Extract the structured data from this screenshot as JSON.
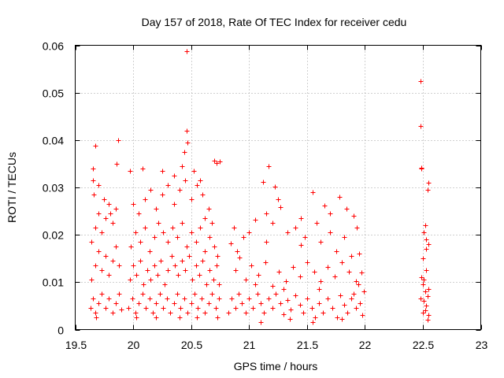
{
  "chart_data": {
    "type": "scatter",
    "title": "Day 157 of 2018, Rate Of TEC Index for receiver cedu",
    "xlabel": "GPS time / hours",
    "ylabel": "ROTI / TECUs",
    "xlim": [
      19.5,
      23
    ],
    "ylim": [
      0,
      0.06
    ],
    "x_ticks": [
      19.5,
      20,
      20.5,
      21,
      21.5,
      22,
      22.5,
      23
    ],
    "x_tick_labels": [
      "19.5",
      "20",
      "20.5",
      "21",
      "21.5",
      "22",
      "22.5",
      "23"
    ],
    "y_ticks": [
      0,
      0.01,
      0.02,
      0.03,
      0.04,
      0.05,
      0.06
    ],
    "y_tick_labels": [
      "0",
      "0.01",
      "0.02",
      "0.03",
      "0.04",
      "0.05",
      "0.06"
    ],
    "grid": true,
    "marker": "+",
    "color": "#ff0000",
    "series": [
      {
        "name": "ROTI",
        "points": [
          [
            20.46,
            0.0587
          ],
          [
            22.48,
            0.0524
          ],
          [
            22.48,
            0.043
          ],
          [
            20.46,
            0.042
          ],
          [
            19.87,
            0.04
          ],
          [
            20.47,
            0.0395
          ],
          [
            19.67,
            0.0388
          ],
          [
            20.44,
            0.0375
          ],
          [
            22.49,
            0.0342
          ],
          [
            22.49,
            0.034
          ],
          [
            19.65,
            0.034
          ],
          [
            19.86,
            0.035
          ],
          [
            21.17,
            0.0345
          ],
          [
            20.08,
            0.034
          ],
          [
            19.97,
            0.0335
          ],
          [
            22.55,
            0.031
          ],
          [
            22.54,
            0.0295
          ],
          [
            20.7,
            0.0356
          ],
          [
            20.72,
            0.0352
          ],
          [
            20.75,
            0.0355
          ],
          [
            22.52,
            0.022
          ],
          [
            22.51,
            0.0205
          ],
          [
            22.53,
            0.019
          ],
          [
            22.55,
            0.018
          ],
          [
            22.53,
            0.017
          ],
          [
            22.5,
            0.015
          ],
          [
            22.49,
            0.011
          ],
          [
            22.5,
            0.0095
          ],
          [
            22.52,
            0.008
          ],
          [
            22.54,
            0.007
          ],
          [
            22.51,
            0.006
          ],
          [
            22.53,
            0.005
          ],
          [
            22.52,
            0.004
          ],
          [
            22.55,
            0.003
          ],
          [
            22.54,
            0.002
          ],
          [
            22.5,
            0.0035
          ],
          [
            22.48,
            0.0065
          ],
          [
            22.55,
            0.0085
          ],
          [
            22.51,
            0.0105
          ],
          [
            22.53,
            0.0125
          ],
          [
            21.0,
            0.0205
          ],
          [
            21.05,
            0.0232
          ],
          [
            21.12,
            0.0312
          ],
          [
            21.22,
            0.0302
          ],
          [
            21.27,
            0.0258
          ],
          [
            21.33,
            0.0205
          ],
          [
            21.45,
            0.0178
          ],
          [
            21.55,
            0.029
          ],
          [
            21.65,
            0.0262
          ],
          [
            21.78,
            0.028
          ],
          [
            21.84,
            0.0255
          ],
          [
            21.9,
            0.024
          ],
          [
            21.93,
            0.0215
          ],
          [
            21.95,
            0.016
          ],
          [
            21.97,
            0.012
          ],
          [
            21.99,
            0.008
          ],
          [
            21.98,
            0.003
          ],
          [
            21.96,
            0.0055
          ],
          [
            21.94,
            0.0095
          ],
          [
            21.92,
            0.0045
          ],
          [
            21.88,
            0.0065
          ],
          [
            21.85,
            0.0035
          ],
          [
            21.82,
            0.0052
          ],
          [
            21.79,
            0.0072
          ],
          [
            21.76,
            0.0025
          ],
          [
            21.72,
            0.0045
          ],
          [
            21.68,
            0.0065
          ],
          [
            21.64,
            0.0035
          ],
          [
            21.6,
            0.0055
          ],
          [
            21.57,
            0.0025
          ],
          [
            21.54,
            0.0045
          ],
          [
            21.5,
            0.0065
          ],
          [
            21.47,
            0.0035
          ],
          [
            21.44,
            0.0052
          ],
          [
            21.4,
            0.0072
          ],
          [
            21.36,
            0.0042
          ],
          [
            21.33,
            0.0062
          ],
          [
            21.3,
            0.0032
          ],
          [
            21.27,
            0.0055
          ],
          [
            21.23,
            0.0075
          ],
          [
            21.2,
            0.0045
          ],
          [
            21.17,
            0.0065
          ],
          [
            21.13,
            0.0035
          ],
          [
            21.1,
            0.0055
          ],
          [
            21.07,
            0.0075
          ],
          [
            21.03,
            0.0045
          ],
          [
            21.0,
            0.0065
          ],
          [
            20.97,
            0.0035
          ],
          [
            20.94,
            0.0055
          ],
          [
            20.91,
            0.0075
          ],
          [
            20.88,
            0.0045
          ],
          [
            20.85,
            0.0065
          ],
          [
            20.82,
            0.0035
          ],
          [
            20.88,
            0.0125
          ],
          [
            20.92,
            0.0152
          ],
          [
            20.97,
            0.0105
          ],
          [
            21.02,
            0.0135
          ],
          [
            21.08,
            0.0115
          ],
          [
            21.14,
            0.0142
          ],
          [
            21.2,
            0.0092
          ],
          [
            21.26,
            0.0122
          ],
          [
            21.32,
            0.0102
          ],
          [
            21.38,
            0.0132
          ],
          [
            21.44,
            0.0112
          ],
          [
            21.5,
            0.0142
          ],
          [
            21.56,
            0.0122
          ],
          [
            21.62,
            0.0102
          ],
          [
            21.68,
            0.0132
          ],
          [
            21.74,
            0.0112
          ],
          [
            21.8,
            0.0142
          ],
          [
            21.86,
            0.0122
          ],
          [
            21.92,
            0.0102
          ],
          [
            20.84,
            0.0182
          ],
          [
            20.87,
            0.0215
          ],
          [
            20.9,
            0.0165
          ],
          [
            20.95,
            0.0195
          ],
          [
            21.15,
            0.0245
          ],
          [
            21.2,
            0.0225
          ],
          [
            21.25,
            0.0275
          ],
          [
            21.4,
            0.0215
          ],
          [
            21.48,
            0.0195
          ],
          [
            21.58,
            0.0225
          ],
          [
            21.62,
            0.0185
          ],
          [
            21.7,
            0.0205
          ],
          [
            21.75,
            0.0165
          ],
          [
            21.82,
            0.0195
          ],
          [
            21.88,
            0.0155
          ],
          [
            21.15,
            0.0185
          ],
          [
            19.63,
            0.0045
          ],
          [
            19.65,
            0.0065
          ],
          [
            19.67,
            0.0035
          ],
          [
            19.7,
            0.0055
          ],
          [
            19.73,
            0.0075
          ],
          [
            19.76,
            0.0045
          ],
          [
            19.79,
            0.0065
          ],
          [
            19.82,
            0.0035
          ],
          [
            19.85,
            0.0055
          ],
          [
            19.88,
            0.0075
          ],
          [
            19.64,
            0.0105
          ],
          [
            19.67,
            0.0135
          ],
          [
            19.7,
            0.0165
          ],
          [
            19.73,
            0.0125
          ],
          [
            19.76,
            0.0155
          ],
          [
            19.79,
            0.0115
          ],
          [
            19.82,
            0.0145
          ],
          [
            19.85,
            0.0175
          ],
          [
            19.88,
            0.0135
          ],
          [
            19.64,
            0.0185
          ],
          [
            19.67,
            0.0215
          ],
          [
            19.7,
            0.0245
          ],
          [
            19.73,
            0.0205
          ],
          [
            19.76,
            0.0235
          ],
          [
            19.79,
            0.0265
          ],
          [
            19.82,
            0.0225
          ],
          [
            19.85,
            0.0255
          ],
          [
            19.66,
            0.0285
          ],
          [
            19.7,
            0.0305
          ],
          [
            19.75,
            0.0275
          ],
          [
            19.8,
            0.0245
          ],
          [
            19.65,
            0.0315
          ],
          [
            19.96,
            0.0045
          ],
          [
            19.99,
            0.0065
          ],
          [
            20.02,
            0.0035
          ],
          [
            20.05,
            0.0055
          ],
          [
            20.08,
            0.0075
          ],
          [
            20.11,
            0.0045
          ],
          [
            20.14,
            0.0065
          ],
          [
            20.17,
            0.0035
          ],
          [
            20.2,
            0.0055
          ],
          [
            20.23,
            0.0075
          ],
          [
            20.26,
            0.0045
          ],
          [
            20.29,
            0.0065
          ],
          [
            20.32,
            0.0035
          ],
          [
            20.35,
            0.0055
          ],
          [
            20.38,
            0.0075
          ],
          [
            20.41,
            0.0045
          ],
          [
            20.44,
            0.0065
          ],
          [
            20.47,
            0.0035
          ],
          [
            20.5,
            0.0055
          ],
          [
            20.53,
            0.0075
          ],
          [
            20.56,
            0.0045
          ],
          [
            20.59,
            0.0065
          ],
          [
            20.62,
            0.0035
          ],
          [
            20.65,
            0.0055
          ],
          [
            20.68,
            0.0075
          ],
          [
            20.71,
            0.0045
          ],
          [
            20.74,
            0.0065
          ],
          [
            19.97,
            0.0105
          ],
          [
            20.0,
            0.0135
          ],
          [
            20.03,
            0.0115
          ],
          [
            20.06,
            0.0145
          ],
          [
            20.09,
            0.0095
          ],
          [
            20.12,
            0.0125
          ],
          [
            20.15,
            0.0105
          ],
          [
            20.18,
            0.0135
          ],
          [
            20.21,
            0.0115
          ],
          [
            20.24,
            0.0145
          ],
          [
            20.27,
            0.0095
          ],
          [
            20.3,
            0.0125
          ],
          [
            20.33,
            0.0155
          ],
          [
            20.36,
            0.0135
          ],
          [
            20.39,
            0.0115
          ],
          [
            20.42,
            0.0145
          ],
          [
            20.45,
            0.0125
          ],
          [
            20.48,
            0.0155
          ],
          [
            20.51,
            0.0105
          ],
          [
            20.54,
            0.0135
          ],
          [
            20.57,
            0.0115
          ],
          [
            20.6,
            0.0145
          ],
          [
            20.63,
            0.0095
          ],
          [
            20.66,
            0.0125
          ],
          [
            20.69,
            0.0105
          ],
          [
            20.72,
            0.0135
          ],
          [
            19.98,
            0.0175
          ],
          [
            20.02,
            0.0205
          ],
          [
            20.06,
            0.0185
          ],
          [
            20.1,
            0.0215
          ],
          [
            20.14,
            0.0165
          ],
          [
            20.18,
            0.0195
          ],
          [
            20.22,
            0.0225
          ],
          [
            20.26,
            0.0205
          ],
          [
            20.3,
            0.0185
          ],
          [
            20.34,
            0.0215
          ],
          [
            20.38,
            0.0195
          ],
          [
            20.42,
            0.0225
          ],
          [
            20.46,
            0.0175
          ],
          [
            20.5,
            0.0205
          ],
          [
            20.54,
            0.0185
          ],
          [
            20.58,
            0.0215
          ],
          [
            20.62,
            0.0165
          ],
          [
            20.66,
            0.0195
          ],
          [
            20.7,
            0.0175
          ],
          [
            20.0,
            0.0265
          ],
          [
            20.05,
            0.0245
          ],
          [
            20.1,
            0.0275
          ],
          [
            20.15,
            0.0295
          ],
          [
            20.2,
            0.0255
          ],
          [
            20.25,
            0.0285
          ],
          [
            20.3,
            0.0305
          ],
          [
            20.35,
            0.0265
          ],
          [
            20.4,
            0.0295
          ],
          [
            20.45,
            0.0315
          ],
          [
            20.5,
            0.0275
          ],
          [
            20.55,
            0.0305
          ],
          [
            20.6,
            0.0285
          ],
          [
            20.65,
            0.0255
          ],
          [
            20.25,
            0.0335
          ],
          [
            20.35,
            0.0325
          ],
          [
            20.42,
            0.0345
          ],
          [
            20.52,
            0.0335
          ],
          [
            20.58,
            0.0315
          ],
          [
            20.62,
            0.0235
          ],
          [
            20.68,
            0.0225
          ],
          [
            20.73,
            0.0155
          ],
          [
            20.74,
            0.0095
          ],
          [
            20.73,
            0.0025
          ],
          [
            20.03,
            0.0025
          ],
          [
            20.2,
            0.0025
          ],
          [
            20.4,
            0.0025
          ],
          [
            20.55,
            0.0025
          ],
          [
            21.1,
            0.0015
          ],
          [
            21.35,
            0.0022
          ],
          [
            21.55,
            0.0015
          ],
          [
            21.8,
            0.0022
          ],
          [
            19.68,
            0.0025
          ],
          [
            19.9,
            0.0042
          ],
          [
            21.05,
            0.0095
          ],
          [
            21.3,
            0.0085
          ],
          [
            21.6,
            0.0085
          ],
          [
            21.9,
            0.0075
          ],
          [
            21.45,
            0.0235
          ],
          [
            21.7,
            0.0245
          ]
        ]
      }
    ]
  }
}
